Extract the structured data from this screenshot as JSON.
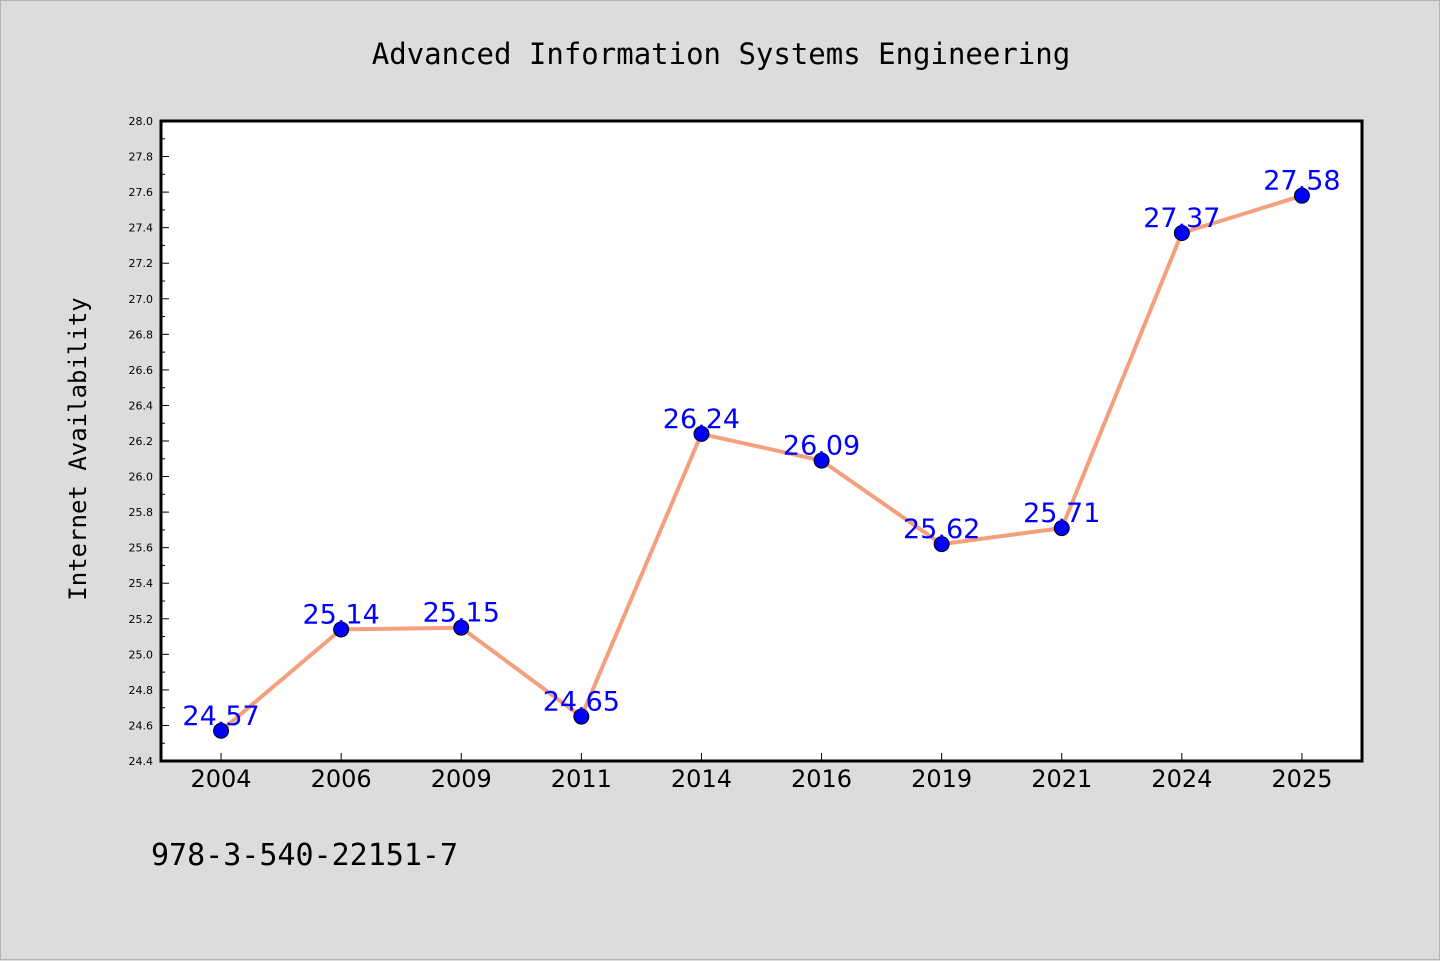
{
  "chart_data": {
    "type": "line",
    "title": "Advanced Information Systems Engineering",
    "xlabel": "",
    "ylabel": "Internet Availability",
    "categories": [
      "2004",
      "2006",
      "2009",
      "2011",
      "2014",
      "2016",
      "2019",
      "2021",
      "2024",
      "2025"
    ],
    "values": [
      24.57,
      25.14,
      25.15,
      24.65,
      26.24,
      26.09,
      25.62,
      25.71,
      27.37,
      27.58
    ],
    "data_labels": [
      "24.57",
      "25.14",
      "25.15",
      "24.65",
      "26.24",
      "26.09",
      "25.62",
      "25.71",
      "27.37",
      "27.58"
    ],
    "ylim": [
      24.4,
      28.0
    ],
    "y_major_ticks": [
      "24.4",
      "24.6",
      "24.8",
      "25.0",
      "25.2",
      "25.4",
      "25.6",
      "25.8",
      "26.0",
      "26.2",
      "26.4",
      "26.6",
      "26.8",
      "27.0",
      "27.2",
      "27.4",
      "27.6",
      "27.8",
      "28.0"
    ],
    "grid": false,
    "legend": "none",
    "colors": {
      "line": "#f4a07e",
      "marker": "#0000ff",
      "data_label": "#0000ff",
      "plot_background": "#ffffff",
      "figure_background": "#dcdcdc"
    }
  },
  "footnote": "978-3-540-22151-7"
}
